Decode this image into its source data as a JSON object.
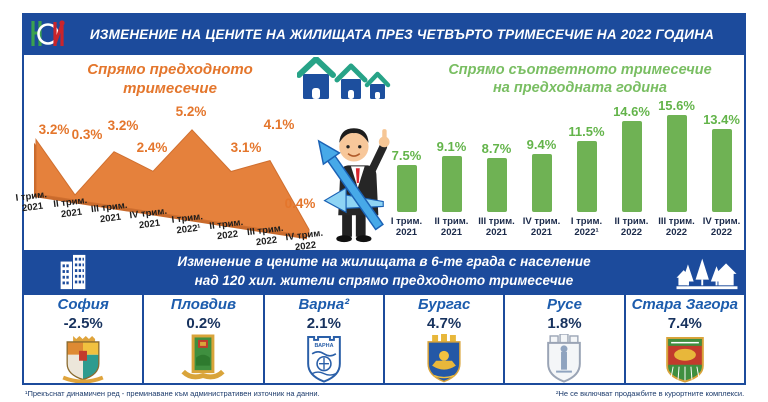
{
  "header": {
    "title": "ИЗМЕНЕНИЕ НА ЦЕНИТЕ НА ЖИЛИЩАТА ПРЕЗ ЧЕТВЪРТО ТРИМЕСЕЧИЕ НА 2022 ГОДИНА",
    "logo_text": "НСИ"
  },
  "left_chart": {
    "title_line1": "Спрямо предходното",
    "title_line2": "тримесечие"
  },
  "right_chart": {
    "title_line1": "Спрямо съответното тримесечие",
    "title_line2": "на предходната година"
  },
  "chart_data": [
    {
      "type": "area",
      "name": "change-vs-previous-quarter",
      "title": "Спрямо предходното тримесечие",
      "unit": "%",
      "color": "#E5813C",
      "categories": [
        [
          "I трим.",
          "2021"
        ],
        [
          "II трим.",
          "2021"
        ],
        [
          "III трим.",
          "2021"
        ],
        [
          "IV трим.",
          "2021"
        ],
        [
          "I трим.",
          "2022¹"
        ],
        [
          "II трим.",
          "2022"
        ],
        [
          "III трим.",
          "2022"
        ],
        [
          "IV трим.",
          "2022"
        ]
      ],
      "values": [
        3.2,
        0.3,
        3.2,
        2.4,
        5.2,
        3.1,
        4.1,
        0.4
      ]
    },
    {
      "type": "bar",
      "name": "change-vs-same-quarter-previous-year",
      "title": "Спрямо съответното тримесечие на предходната година",
      "unit": "%",
      "color": "#6FB254",
      "categories": [
        [
          "I трим.",
          "2021"
        ],
        [
          "II трим.",
          "2021"
        ],
        [
          "III трим.",
          "2021"
        ],
        [
          "IV трим.",
          "2021"
        ],
        [
          "I трим.",
          "2022¹"
        ],
        [
          "II трим.",
          "2022"
        ],
        [
          "III трим.",
          "2022"
        ],
        [
          "IV трим.",
          "2022"
        ]
      ],
      "values": [
        7.5,
        9.1,
        8.7,
        9.4,
        11.5,
        14.6,
        15.6,
        13.4
      ]
    }
  ],
  "banner": {
    "line1": "Изменение в цените на жилищата в 6-те града с население",
    "line2": "над 120 хил. жители спрямо предходното тримесечие"
  },
  "cities": [
    {
      "name": "София",
      "value": "-2.5%"
    },
    {
      "name": "Пловдив",
      "value": "0.2%"
    },
    {
      "name": "Варна²",
      "value": "2.1%"
    },
    {
      "name": "Бургас",
      "value": "4.7%"
    },
    {
      "name": "Русе",
      "value": "1.8%"
    },
    {
      "name": "Стара Загора",
      "value": "7.4%"
    }
  ],
  "footnotes": {
    "left": "¹Прекъснат динамичен ред - преминаване към административен източник на данни.",
    "right": "²Не се включват продажбите в курортните комплекси."
  },
  "colors": {
    "primary_blue": "#1C4B9C",
    "orange": "#E5813C",
    "green": "#6FB254",
    "city_name_blue": "#1C5CAD",
    "navy_text": "#17325E"
  },
  "icons": {
    "logo": "nsi-logo",
    "houses": "three-houses-icon",
    "buildings": "city-buildings-icon",
    "village": "houses-and-trees-icon",
    "mascot": "businessman-with-arrow",
    "arms": [
      "sofia-coat-of-arms",
      "plovdiv-coat-of-arms",
      "varna-coat-of-arms",
      "burgas-coat-of-arms",
      "ruse-coat-of-arms",
      "stara-zagora-coat-of-arms"
    ]
  }
}
